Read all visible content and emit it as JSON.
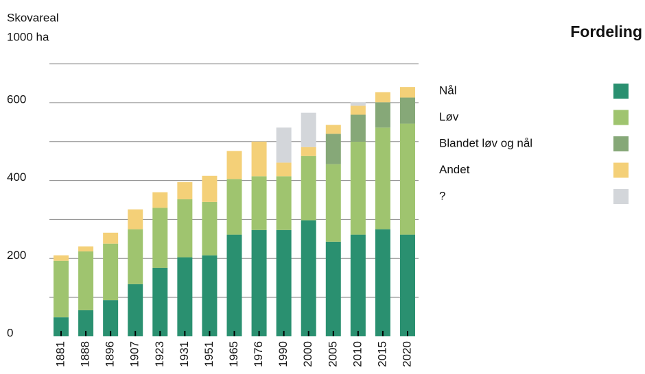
{
  "chart_data": {
    "type": "stacked_bar",
    "y_label_line1": "Skovareal",
    "y_label_line2": "1000 ha",
    "legend_title": "Fordeling",
    "categories": [
      "1881",
      "1888",
      "1896",
      "1907",
      "1923",
      "1931",
      "1951",
      "1965",
      "1976",
      "1990",
      "2000",
      "2005",
      "2010",
      "2015",
      "2020"
    ],
    "series": [
      {
        "name": "Nål",
        "color": "#2a9070",
        "values": [
          49,
          67,
          93,
          134,
          176,
          203,
          208,
          261,
          273,
          273,
          298,
          243,
          261,
          275,
          261
        ]
      },
      {
        "name": "Løv",
        "color": "#9fc46f",
        "values": [
          145,
          151,
          145,
          141,
          154,
          149,
          137,
          143,
          138,
          138,
          165,
          199,
          239,
          261,
          285
        ]
      },
      {
        "name": "Blandet løv og nål",
        "color": "#86a878",
        "values": [
          null,
          null,
          null,
          null,
          null,
          null,
          null,
          null,
          null,
          null,
          null,
          78,
          69,
          65,
          67
        ]
      },
      {
        "name": "Andet",
        "color": "#f4d078",
        "values": [
          14,
          13,
          28,
          51,
          40,
          44,
          67,
          72,
          89,
          35,
          23,
          23,
          23,
          26,
          27
        ]
      },
      {
        "name": "?",
        "color": "#d3d6da",
        "values": [
          null,
          null,
          null,
          null,
          null,
          null,
          null,
          null,
          null,
          90,
          88,
          null,
          9,
          null,
          null
        ]
      }
    ],
    "ylim": [
      0,
      700
    ],
    "yticks": [
      0,
      200,
      400,
      600
    ],
    "ygrid": [
      100,
      200,
      300,
      400,
      500,
      600,
      700
    ],
    "grid": true
  }
}
